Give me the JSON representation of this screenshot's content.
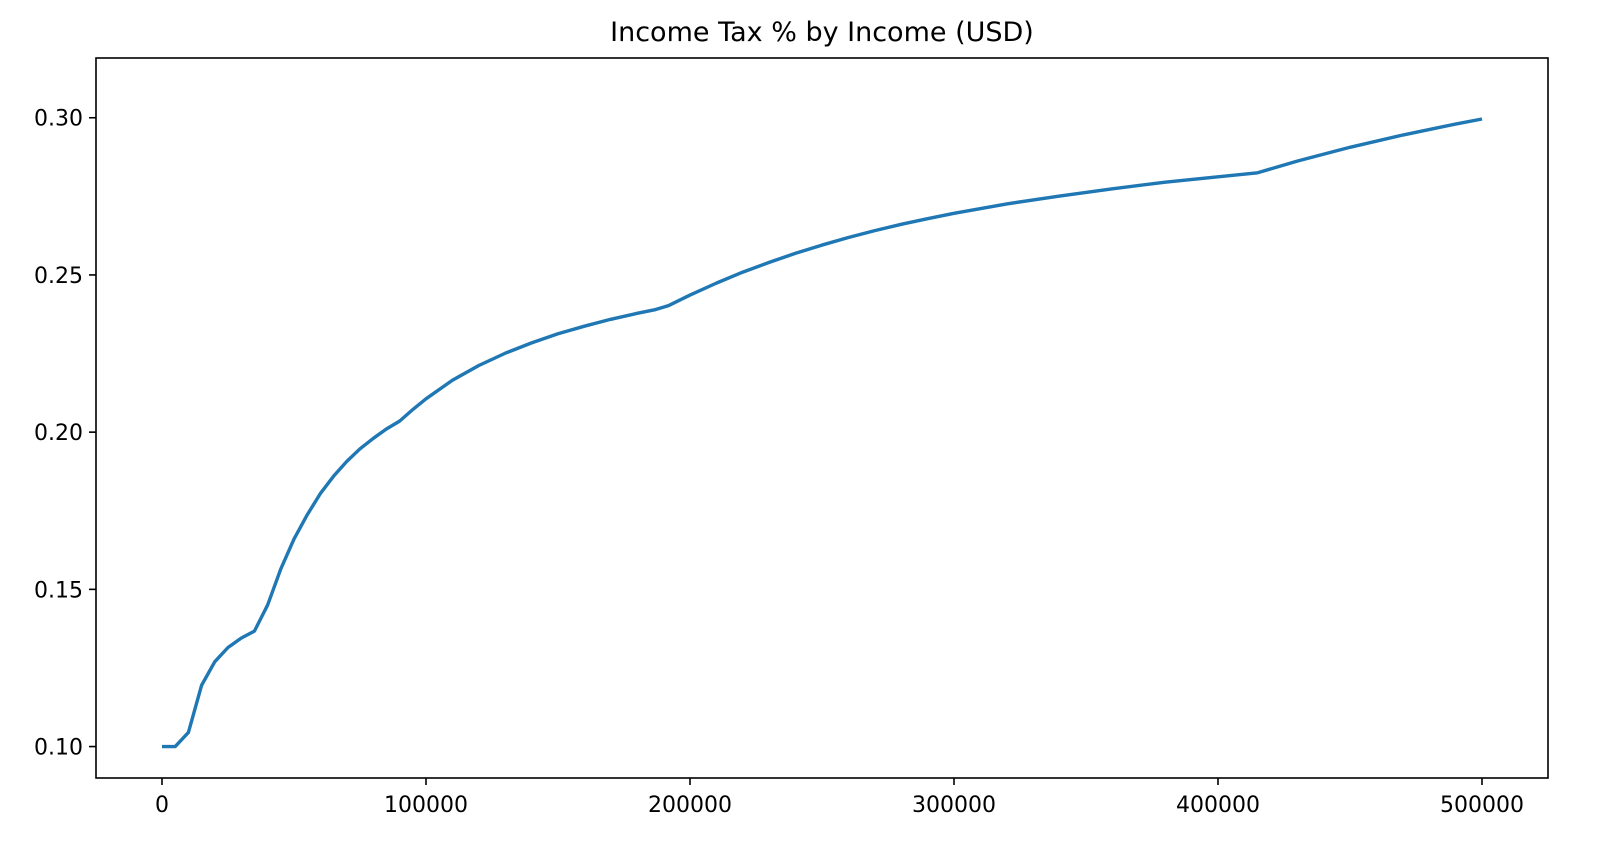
{
  "chart_data": {
    "type": "line",
    "title": "Income Tax % by Income (USD)",
    "xlabel": "",
    "ylabel": "",
    "xlim": [
      -25000,
      525000
    ],
    "ylim": [
      0.09,
      0.319
    ],
    "xticks": [
      0,
      100000,
      200000,
      300000,
      400000,
      500000
    ],
    "xtick_labels": [
      "0",
      "100000",
      "200000",
      "300000",
      "400000",
      "500000"
    ],
    "yticks": [
      0.1,
      0.15,
      0.2,
      0.25,
      0.3
    ],
    "ytick_labels": [
      "0.10",
      "0.15",
      "0.20",
      "0.25",
      "0.30"
    ],
    "grid": false,
    "legend": "none",
    "series": [
      {
        "color": "#1f77b4",
        "x": [
          0,
          5000,
          10000,
          15000,
          20000,
          25000,
          30000,
          35000,
          40000,
          45000,
          50000,
          55000,
          60000,
          65000,
          70000,
          75000,
          80000,
          85000,
          90000,
          95000,
          100000,
          110000,
          120000,
          130000,
          140000,
          150000,
          160000,
          170000,
          180000,
          187000,
          192000,
          200000,
          210000,
          220000,
          230000,
          240000,
          250000,
          260000,
          270000,
          280000,
          290000,
          300000,
          320000,
          340000,
          360000,
          380000,
          400000,
          415000,
          430000,
          450000,
          470000,
          490000,
          500000
        ],
        "y": [
          0.1,
          0.1,
          0.1045,
          0.1195,
          0.127,
          0.1315,
          0.1345,
          0.1367,
          0.145,
          0.1565,
          0.166,
          0.1737,
          0.1805,
          0.186,
          0.1907,
          0.1947,
          0.198,
          0.201,
          0.2035,
          0.2072,
          0.2106,
          0.2165,
          0.2212,
          0.2251,
          0.2284,
          0.2313,
          0.2337,
          0.2359,
          0.2378,
          0.239,
          0.2403,
          0.2436,
          0.2474,
          0.2509,
          0.254,
          0.2569,
          0.2595,
          0.2619,
          0.2641,
          0.2661,
          0.2679,
          0.2696,
          0.2726,
          0.2751,
          0.2774,
          0.2795,
          0.2812,
          0.2825,
          0.2862,
          0.2906,
          0.2945,
          0.298,
          0.2996
        ]
      }
    ]
  }
}
